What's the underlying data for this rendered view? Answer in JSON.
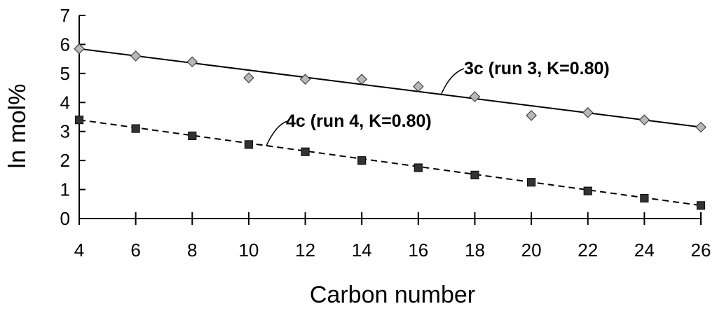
{
  "chart_data": {
    "type": "scatter",
    "xlabel": "Carbon number",
    "ylabel": "ln mol%",
    "xlim": [
      4,
      26
    ],
    "ylim": [
      0,
      7
    ],
    "xticks": [
      4,
      6,
      8,
      10,
      12,
      14,
      16,
      18,
      20,
      22,
      24,
      26
    ],
    "yticks": [
      0,
      1,
      2,
      3,
      4,
      5,
      6,
      7
    ],
    "grid": false,
    "legend": "none",
    "series": [
      {
        "name": "3c (run 3, K=0.80)",
        "marker": "diamond",
        "marker_color": "#b8b8b8",
        "line": "solid",
        "x": [
          4,
          6,
          8,
          10,
          12,
          14,
          16,
          18,
          20,
          22,
          24,
          26
        ],
        "y": [
          5.85,
          5.6,
          5.4,
          4.85,
          4.8,
          4.8,
          4.55,
          4.2,
          3.55,
          3.65,
          3.4,
          3.15
        ],
        "fit": [
          [
            4,
            5.85
          ],
          [
            26,
            3.15
          ]
        ]
      },
      {
        "name": "4c (run 4, K=0.80)",
        "marker": "square",
        "marker_color": "#333333",
        "line": "dashed",
        "x": [
          4,
          6,
          8,
          10,
          12,
          14,
          16,
          18,
          20,
          22,
          24,
          26
        ],
        "y": [
          3.4,
          3.1,
          2.85,
          2.55,
          2.3,
          2.0,
          1.75,
          1.5,
          1.25,
          0.95,
          0.7,
          0.45
        ],
        "fit": [
          [
            4,
            3.4
          ],
          [
            26,
            0.45
          ]
        ]
      }
    ]
  }
}
